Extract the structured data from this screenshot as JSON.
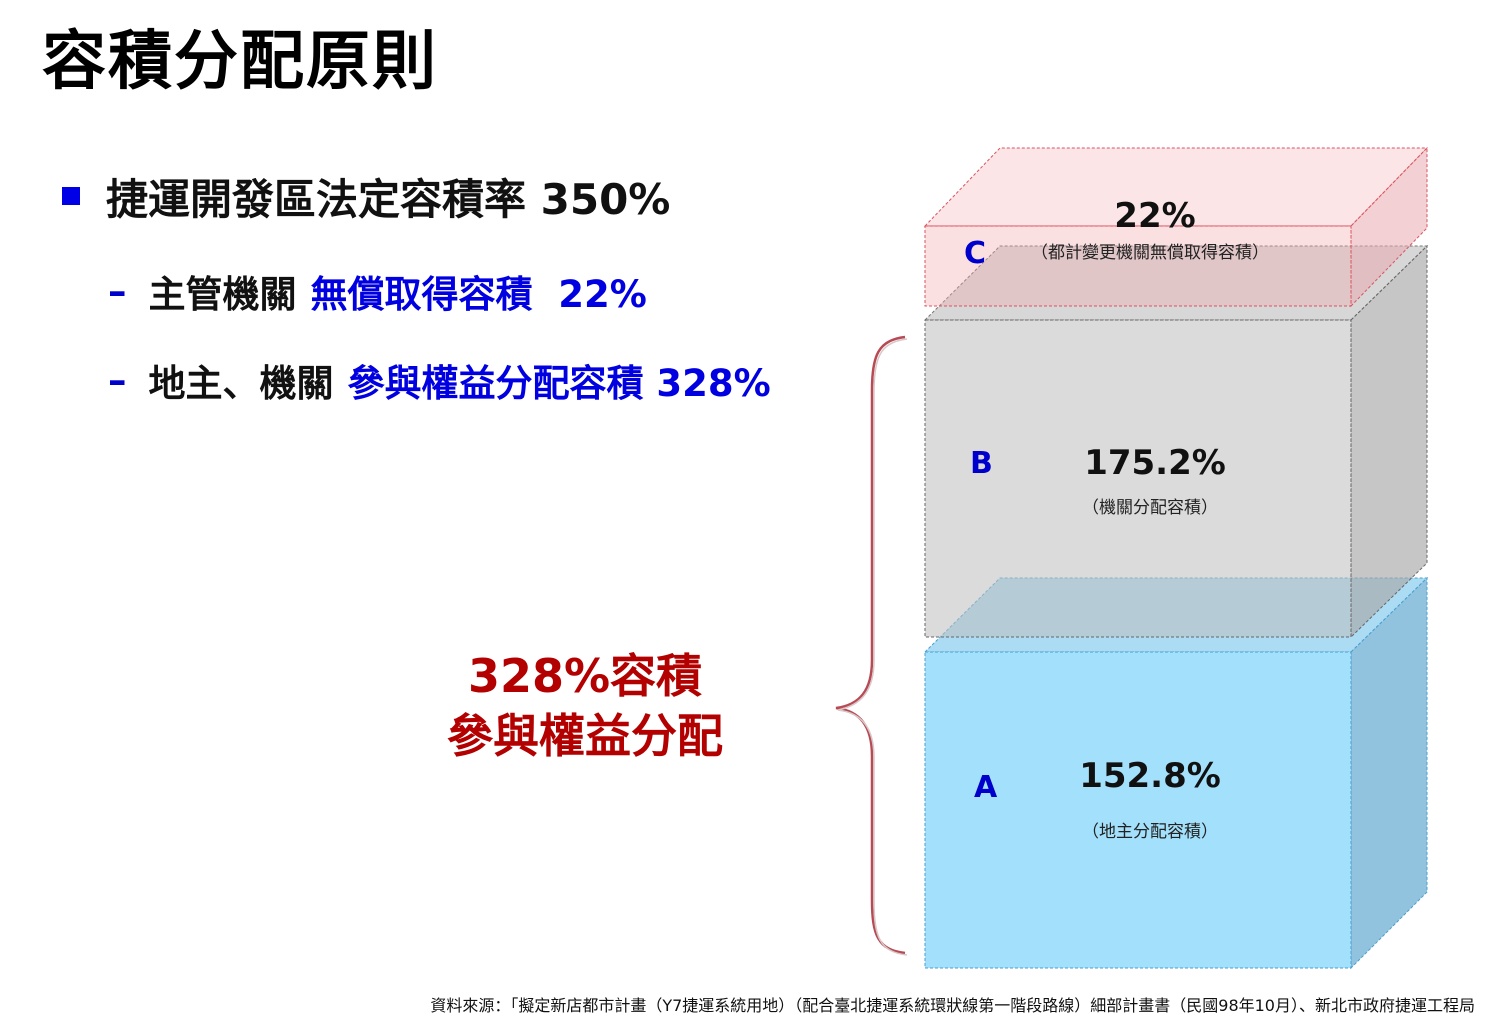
{
  "page": {
    "title": "容積分配原則"
  },
  "bullet": {
    "text": "捷運開發區法定容積率 350%"
  },
  "sub_items": [
    {
      "dash": "–",
      "plain": "主管機關",
      "highlight": "無償取得容積  22%"
    },
    {
      "dash": "–",
      "plain": "地主、機關",
      "highlight": "參與權益分配容積 328%"
    }
  ],
  "share_label": {
    "line1": "328%容積",
    "line2": "參與權益分配"
  },
  "blocks": {
    "C": {
      "letter": "C",
      "value": "22%",
      "note": "（都計變更機關無償取得容積）",
      "color": "#f4a7ad"
    },
    "B": {
      "letter": "B",
      "value": "175.2%",
      "note": "（機關分配容積）",
      "color": "#c8c8c8"
    },
    "A": {
      "letter": "A",
      "value": "152.8%",
      "note": "（地主分配容積）",
      "color": "#9fdcf7"
    }
  },
  "footnote": "資料來源：「擬定新店都市計畫（Y7捷運系統用地）（配合臺北捷運系統環狀線第一階段路線）細部計畫書（民國98年10月）、新北市政府捷運工程局"
}
